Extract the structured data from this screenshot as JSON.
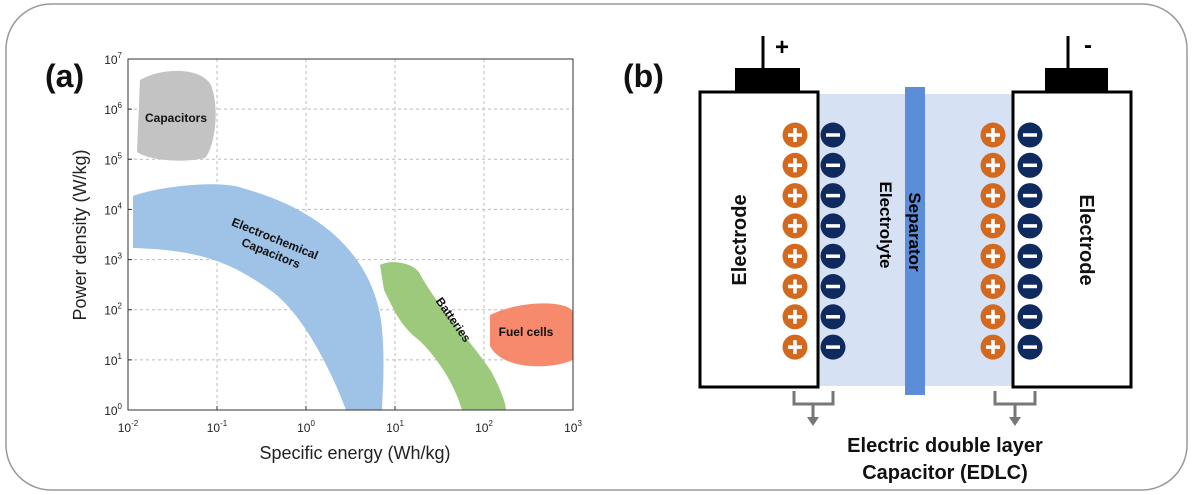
{
  "panel_a": {
    "label": "(a)",
    "x_axis": {
      "title": "Specific energy (Wh/kg)",
      "scale": "log",
      "lim": [
        0.01,
        1000
      ],
      "ticks": [
        {
          "value": 0.01,
          "label": "10",
          "exponent": "-2"
        },
        {
          "value": 0.1,
          "label": "10",
          "exponent": "-1"
        },
        {
          "value": 1,
          "label": "10",
          "exponent": "0"
        },
        {
          "value": 10,
          "label": "10",
          "exponent": "1"
        },
        {
          "value": 100,
          "label": "10",
          "exponent": "2"
        },
        {
          "value": 1000,
          "label": "10",
          "exponent": "3"
        }
      ]
    },
    "y_axis": {
      "title": "Power density (W/kg)",
      "scale": "log",
      "lim": [
        1,
        10000000
      ],
      "ticks": [
        {
          "value": 1,
          "label": "10",
          "exponent": "0"
        },
        {
          "value": 10,
          "label": "10",
          "exponent": "1"
        },
        {
          "value": 100,
          "label": "10",
          "exponent": "2"
        },
        {
          "value": 1000,
          "label": "10",
          "exponent": "3"
        },
        {
          "value": 10000,
          "label": "10",
          "exponent": "4"
        },
        {
          "value": 100000,
          "label": "10",
          "exponent": "5"
        },
        {
          "value": 1000000,
          "label": "10",
          "exponent": "6"
        },
        {
          "value": 10000000,
          "label": "10",
          "exponent": "7"
        }
      ]
    },
    "grid": true,
    "regions": {
      "capacitors": "Capacitors",
      "electrochemical_capacitors": [
        "Electrochemical",
        "Capacitors"
      ],
      "batteries": "Batteries",
      "fuel_cells": "Fuel cells"
    }
  },
  "panel_b": {
    "label": "(b)",
    "positive_terminal": "+",
    "negative_terminal": "-",
    "left_electrode": "Electrode",
    "right_electrode": "Electrode",
    "electrolyte": "Electrolyte",
    "separator": "Separator",
    "caption": [
      "Electric double layer",
      "Capacitor (EDLC)"
    ]
  }
}
